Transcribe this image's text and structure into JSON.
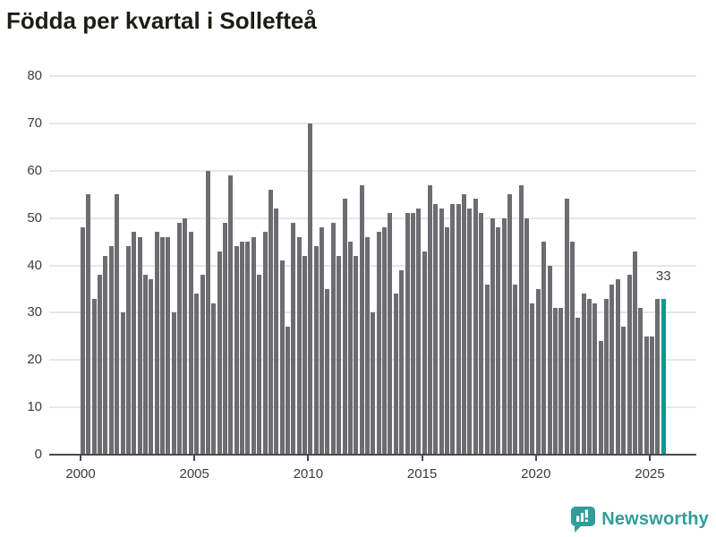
{
  "title": "Födda per kvartal i Sollefteå",
  "colors": {
    "bar": "#6c6c71",
    "highlight": "#0d9894",
    "grid": "#e7e7e7",
    "axis": "#4a4a4a",
    "text": "#3c3c3c",
    "title": "#1d1d16",
    "brand": "#2f9d9a"
  },
  "branding": {
    "name": "Newsworthy",
    "icon": "newsworthy-speech-bubble-bar-chart-icon"
  },
  "chart_data": {
    "type": "bar",
    "title": "Födda per kvartal i Sollefteå",
    "xlabel": "",
    "ylabel": "",
    "ylim": [
      0,
      80
    ],
    "yticks": [
      0,
      10,
      20,
      30,
      40,
      50,
      60,
      70,
      80
    ],
    "grid": "horizontal",
    "legend": "none",
    "frequency": "quarterly",
    "x_start": "2000-Q1",
    "x_end": "2025-Q3",
    "x_tick_labels": [
      "2000",
      "2005",
      "2010",
      "2015",
      "2020",
      "2025"
    ],
    "x_ticks": [
      {
        "label": "2000",
        "bar_index": 0
      },
      {
        "label": "2005",
        "bar_index": 20
      },
      {
        "label": "2010",
        "bar_index": 40
      },
      {
        "label": "2015",
        "bar_index": 60
      },
      {
        "label": "2020",
        "bar_index": 80
      },
      {
        "label": "2025",
        "bar_index": 100
      }
    ],
    "categories": [
      "2000-Q1",
      "2000-Q2",
      "2000-Q3",
      "2000-Q4",
      "2001-Q1",
      "2001-Q2",
      "2001-Q3",
      "2001-Q4",
      "2002-Q1",
      "2002-Q2",
      "2002-Q3",
      "2002-Q4",
      "2003-Q1",
      "2003-Q2",
      "2003-Q3",
      "2003-Q4",
      "2004-Q1",
      "2004-Q2",
      "2004-Q3",
      "2004-Q4",
      "2005-Q1",
      "2005-Q2",
      "2005-Q3",
      "2005-Q4",
      "2006-Q1",
      "2006-Q2",
      "2006-Q3",
      "2006-Q4",
      "2007-Q1",
      "2007-Q2",
      "2007-Q3",
      "2007-Q4",
      "2008-Q1",
      "2008-Q2",
      "2008-Q3",
      "2008-Q4",
      "2009-Q1",
      "2009-Q2",
      "2009-Q3",
      "2009-Q4",
      "2010-Q1",
      "2010-Q2",
      "2010-Q3",
      "2010-Q4",
      "2011-Q1",
      "2011-Q2",
      "2011-Q3",
      "2011-Q4",
      "2012-Q1",
      "2012-Q2",
      "2012-Q3",
      "2012-Q4",
      "2013-Q1",
      "2013-Q2",
      "2013-Q3",
      "2013-Q4",
      "2014-Q1",
      "2014-Q2",
      "2014-Q3",
      "2014-Q4",
      "2015-Q1",
      "2015-Q2",
      "2015-Q3",
      "2015-Q4",
      "2016-Q1",
      "2016-Q2",
      "2016-Q3",
      "2016-Q4",
      "2017-Q1",
      "2017-Q2",
      "2017-Q3",
      "2017-Q4",
      "2018-Q1",
      "2018-Q2",
      "2018-Q3",
      "2018-Q4",
      "2019-Q1",
      "2019-Q2",
      "2019-Q3",
      "2019-Q4",
      "2020-Q1",
      "2020-Q2",
      "2020-Q3",
      "2020-Q4",
      "2021-Q1",
      "2021-Q2",
      "2021-Q3",
      "2021-Q4",
      "2022-Q1",
      "2022-Q2",
      "2022-Q3",
      "2022-Q4",
      "2023-Q1",
      "2023-Q2",
      "2023-Q3",
      "2023-Q4",
      "2024-Q1",
      "2024-Q2",
      "2024-Q3",
      "2024-Q4",
      "2025-Q1",
      "2025-Q2",
      "2025-Q3"
    ],
    "values": [
      48,
      55,
      33,
      38,
      42,
      44,
      55,
      30,
      44,
      47,
      46,
      38,
      37,
      47,
      46,
      46,
      30,
      49,
      50,
      47,
      34,
      38,
      60,
      32,
      43,
      49,
      59,
      44,
      45,
      45,
      46,
      38,
      47,
      56,
      52,
      41,
      27,
      49,
      46,
      42,
      70,
      44,
      48,
      35,
      49,
      42,
      54,
      45,
      42,
      57,
      46,
      30,
      47,
      48,
      51,
      34,
      39,
      51,
      51,
      52,
      43,
      57,
      53,
      52,
      48,
      53,
      53,
      55,
      52,
      54,
      51,
      36,
      50,
      48,
      50,
      55,
      36,
      57,
      50,
      32,
      35,
      45,
      40,
      31,
      31,
      54,
      45,
      29,
      34,
      33,
      32,
      24,
      33,
      36,
      37,
      27,
      38,
      43,
      31,
      25,
      25,
      33,
      33
    ],
    "highlight_bar_index": 102,
    "annotation": {
      "text": "33",
      "bar_index": 102
    }
  }
}
